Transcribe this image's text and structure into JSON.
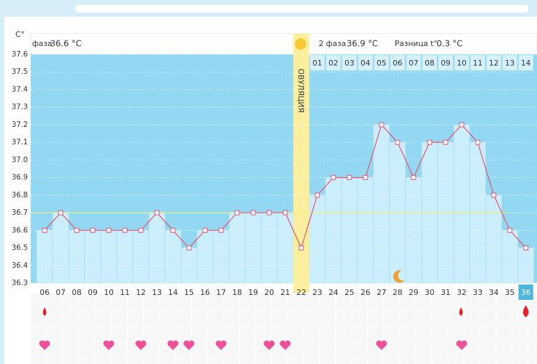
{
  "chart_data": {
    "type": "line",
    "y_label": "C°",
    "header": {
      "phase1": "фаза",
      "phase1_temp": "36.6 °C",
      "phase2": "2 фаза",
      "phase2_temp": "36.9 °C",
      "diff": "Разница t°",
      "diff_value": "0.3 °C",
      "ovulation": "ОВУЛЯЦИЯ"
    },
    "categories": [
      "06",
      "07",
      "08",
      "09",
      "10",
      "11",
      "12",
      "13",
      "14",
      "15",
      "16",
      "17",
      "18",
      "19",
      "20",
      "21",
      "22",
      "23",
      "24",
      "25",
      "26",
      "27",
      "28",
      "29",
      "30",
      "31",
      "32",
      "33",
      "34",
      "35",
      "36"
    ],
    "phase2_days": [
      "01",
      "02",
      "03",
      "04",
      "05",
      "06",
      "07",
      "08",
      "09",
      "10",
      "11",
      "12",
      "13",
      "14"
    ],
    "series": [
      {
        "name": "temperature",
        "color": "#e8506e",
        "values": [
          36.6,
          36.7,
          36.6,
          36.6,
          36.6,
          36.6,
          36.6,
          36.7,
          36.6,
          36.5,
          36.6,
          36.6,
          36.7,
          36.7,
          36.7,
          36.7,
          36.5,
          36.8,
          36.9,
          36.9,
          36.9,
          37.2,
          37.1,
          36.9,
          37.1,
          37.1,
          37.2,
          37.1,
          36.8,
          36.6,
          36.5
        ]
      }
    ],
    "coverline": 36.7,
    "ylim": [
      36.3,
      37.6
    ],
    "yticks": [
      36.3,
      36.4,
      36.5,
      36.6,
      36.7,
      36.8,
      36.9,
      {
        "value": 37,
        "label": "37.0"
      },
      37.1,
      37.2,
      37.3,
      37.4,
      37.5,
      37.6
    ],
    "grid": true
  }
}
